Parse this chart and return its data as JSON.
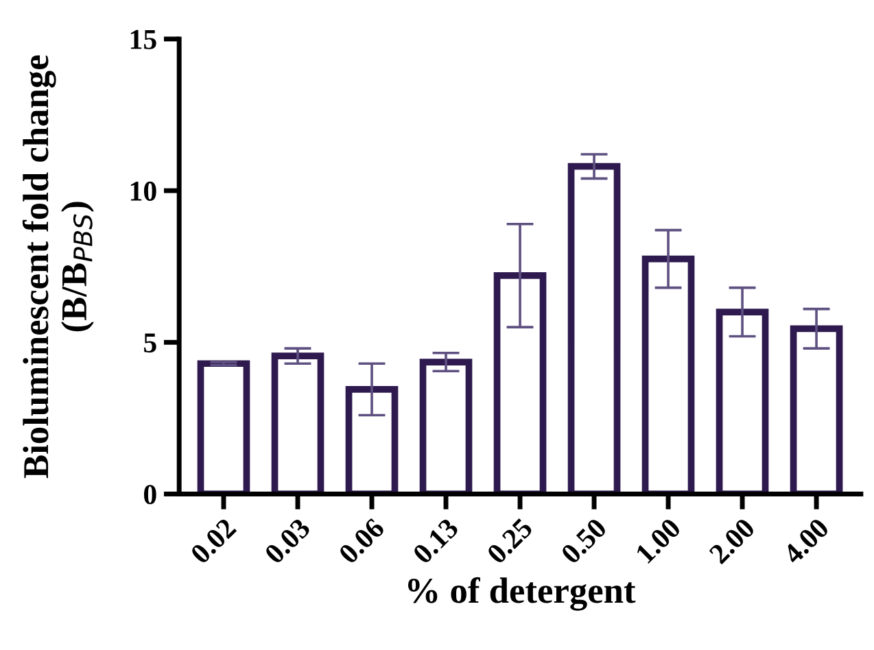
{
  "chart_data": {
    "type": "bar",
    "xlabel": "% of detergent",
    "ylabel": "Bioluminescent fold change\n(B/B$_{PBS}$)",
    "categories": [
      "0.02",
      "0.03",
      "0.06",
      "0.13",
      "0.25",
      "0.50",
      "1.00",
      "2.00",
      "4.00"
    ],
    "values": [
      4.3,
      4.55,
      3.45,
      4.35,
      7.2,
      10.8,
      7.75,
      6.0,
      5.45
    ],
    "errors": [
      0.05,
      0.25,
      0.85,
      0.3,
      1.7,
      0.4,
      0.95,
      0.8,
      0.65
    ],
    "color": "#2e1a4f",
    "ylim": [
      0,
      15
    ],
    "yticks": [
      0,
      5,
      10,
      15
    ],
    "grid": false,
    "legend": false
  }
}
